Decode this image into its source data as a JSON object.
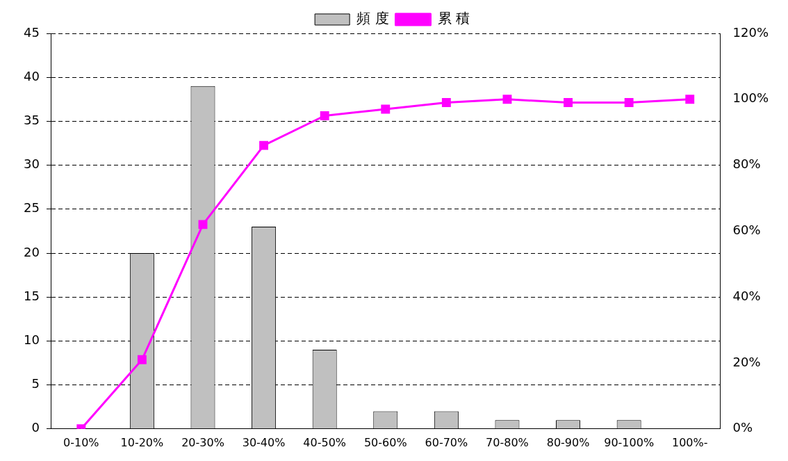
{
  "chart_data": {
    "type": "bar",
    "categories": [
      "0-10%",
      "10-20%",
      "20-30%",
      "30-40%",
      "40-50%",
      "50-60%",
      "60-70%",
      "70-80%",
      "80-90%",
      "90-100%",
      "100%-"
    ],
    "series": [
      {
        "name": "頻 度",
        "color": "#c0c0c0",
        "values": [
          0,
          20,
          39,
          23,
          9,
          2,
          2,
          1,
          1,
          1,
          0
        ]
      },
      {
        "name": "累 積",
        "type": "line",
        "color": "#ff00ff",
        "axis": "y2",
        "marker": "square",
        "values": [
          0,
          21,
          62,
          86,
          95,
          97,
          99,
          100,
          99,
          99,
          100
        ]
      }
    ],
    "ylim": [
      0,
      45
    ],
    "yticks": [
      0,
      5,
      10,
      15,
      20,
      25,
      30,
      35,
      40,
      45
    ],
    "y2lim": [
      0,
      120
    ],
    "y2ticks": [
      {
        "value": 0,
        "label": "0%"
      },
      {
        "value": 20,
        "label": "20%"
      },
      {
        "value": 40,
        "label": "40%"
      },
      {
        "value": 60,
        "label": "60%"
      },
      {
        "value": 80,
        "label": "80%"
      },
      {
        "value": 100,
        "label": "100%"
      },
      {
        "value": 120,
        "label": "120%"
      }
    ],
    "grid": "y",
    "legend": "top"
  }
}
